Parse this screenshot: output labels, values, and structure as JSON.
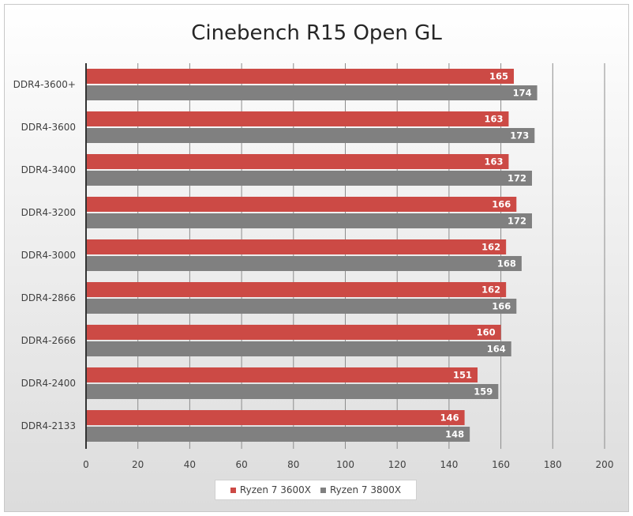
{
  "chart_data": {
    "type": "bar",
    "orientation": "horizontal",
    "title": "Cinebench R15 Open GL",
    "categories": [
      "DDR4-3600+",
      "DDR4-3600",
      "DDR4-3400",
      "DDR4-3200",
      "DDR4-3000",
      "DDR4-2866",
      "DDR4-2666",
      "DDR4-2400",
      "DDR4-2133"
    ],
    "series": [
      {
        "name": "Ryzen 7 3600X",
        "color": "#cc4a45",
        "values": [
          165,
          163,
          163,
          166,
          162,
          162,
          160,
          151,
          146
        ]
      },
      {
        "name": "Ryzen 7 3800X",
        "color": "#808080",
        "values": [
          174,
          173,
          172,
          172,
          168,
          166,
          164,
          159,
          148
        ]
      }
    ],
    "xlim": [
      0,
      200
    ],
    "xticks": [
      0,
      20,
      40,
      60,
      80,
      100,
      120,
      140,
      160,
      180,
      200
    ],
    "grid": true,
    "legend_position": "bottom"
  }
}
